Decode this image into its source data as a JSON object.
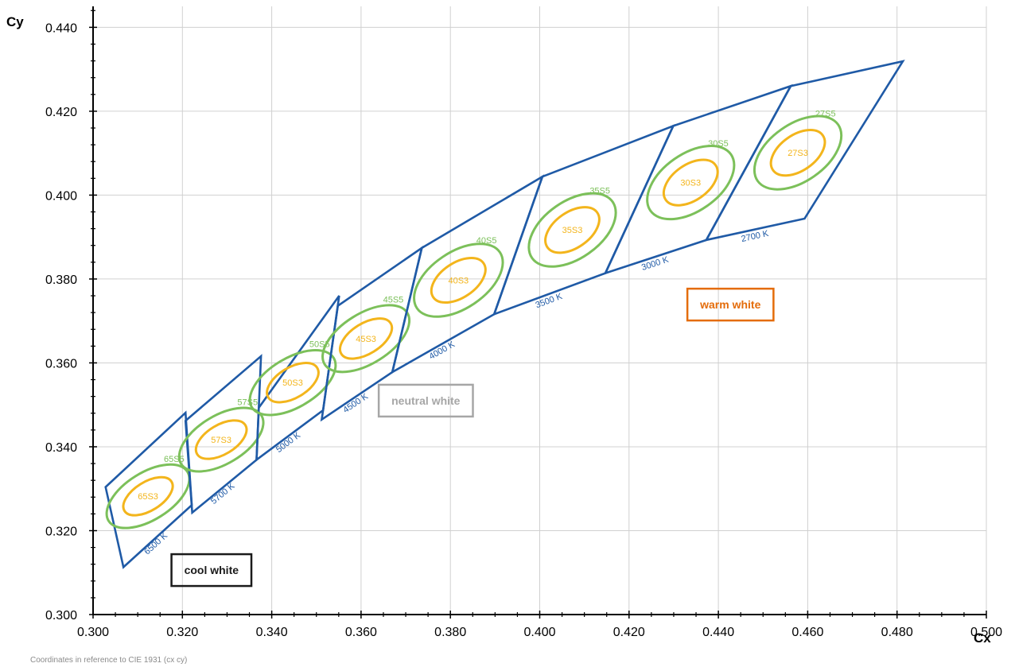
{
  "chart_data": {
    "type": "scatter",
    "xlabel": "Cx",
    "ylabel": "Cy",
    "xlim": [
      0.3,
      0.5
    ],
    "ylim": [
      0.3,
      0.445
    ],
    "x_ticks": [
      "0.300",
      "0.320",
      "0.340",
      "0.360",
      "0.380",
      "0.400",
      "0.420",
      "0.440",
      "0.460",
      "0.480",
      "0.500"
    ],
    "y_ticks": [
      "0.300",
      "0.320",
      "0.340",
      "0.360",
      "0.380",
      "0.400",
      "0.420",
      "0.440"
    ],
    "grid": true,
    "footnote": "Coordinates in reference to CIE 1931 (cx cy)",
    "colors": {
      "quad": "#1f5aa6",
      "ellipse_s5": "#7cc05a",
      "ellipse_s3": "#f3b51c",
      "grid": "#d0d0d0"
    },
    "bins": [
      {
        "cct": "6500 K",
        "s5": "65S5",
        "s3": "65S3",
        "center": [
          0.3123,
          0.3282
        ],
        "quad": [
          [
            0.3028,
            0.3304
          ],
          [
            0.3207,
            0.3481
          ],
          [
            0.3221,
            0.3261
          ],
          [
            0.3068,
            0.3113
          ]
        ],
        "ellipse_s5": {
          "a": 0.0053,
          "b": 0.0104,
          "angle": 58
        },
        "ellipse_s3": {
          "a": 0.0032,
          "b": 0.0062,
          "angle": 58
        }
      },
      {
        "cct": "5700 K",
        "s5": "57S5",
        "s3": "57S3",
        "center": [
          0.3287,
          0.3417
        ],
        "quad": [
          [
            0.3207,
            0.3462
          ],
          [
            0.3376,
            0.3616
          ],
          [
            0.3366,
            0.3369
          ],
          [
            0.3222,
            0.3243
          ]
        ],
        "ellipse_s5": {
          "a": 0.0054,
          "b": 0.0105,
          "angle": 59
        },
        "ellipse_s3": {
          "a": 0.0033,
          "b": 0.0063,
          "angle": 59
        }
      },
      {
        "cct": "5000 K",
        "s5": "50S5",
        "s3": "50S3",
        "center": [
          0.3447,
          0.3553
        ],
        "quad": [
          [
            0.3371,
            0.3493
          ],
          [
            0.3551,
            0.376
          ],
          [
            0.3515,
            0.3487
          ],
          [
            0.3366,
            0.3369
          ]
        ],
        "ellipse_s5": {
          "a": 0.0055,
          "b": 0.0107,
          "angle": 59
        },
        "ellipse_s3": {
          "a": 0.0034,
          "b": 0.0064,
          "angle": 59
        }
      },
      {
        "cct": "4500 K",
        "s5": "45S5",
        "s3": "45S3",
        "center": [
          0.3611,
          0.3658
        ],
        "quad": [
          [
            0.3548,
            0.3736
          ],
          [
            0.3736,
            0.3874
          ],
          [
            0.367,
            0.3578
          ],
          [
            0.3512,
            0.3465
          ]
        ],
        "ellipse_s5": {
          "a": 0.0056,
          "b": 0.0109,
          "angle": 58
        },
        "ellipse_s3": {
          "a": 0.0034,
          "b": 0.0065,
          "angle": 58
        }
      },
      {
        "cct": "4000 K",
        "s5": "40S5",
        "s3": "40S3",
        "center": [
          0.3818,
          0.3797
        ],
        "quad": [
          [
            0.3736,
            0.3874
          ],
          [
            0.4006,
            0.4044
          ],
          [
            0.3898,
            0.3716
          ],
          [
            0.367,
            0.3578
          ]
        ],
        "ellipse_s5": {
          "a": 0.0063,
          "b": 0.0112,
          "angle": 56
        },
        "ellipse_s3": {
          "a": 0.0039,
          "b": 0.0068,
          "angle": 56
        }
      },
      {
        "cct": "3500 K",
        "s5": "35S5",
        "s3": "35S3",
        "center": [
          0.4073,
          0.3917
        ],
        "quad": [
          [
            0.4006,
            0.4044
          ],
          [
            0.4299,
            0.4165
          ],
          [
            0.4147,
            0.3814
          ],
          [
            0.3898,
            0.3716
          ]
        ],
        "ellipse_s5": {
          "a": 0.0064,
          "b": 0.011,
          "angle": 55
        },
        "ellipse_s3": {
          "a": 0.004,
          "b": 0.0068,
          "angle": 55
        }
      },
      {
        "cct": "3000 K",
        "s5": "30S5",
        "s3": "30S3",
        "center": [
          0.4338,
          0.403
        ],
        "quad": [
          [
            0.4299,
            0.4165
          ],
          [
            0.4562,
            0.426
          ],
          [
            0.4373,
            0.3893
          ],
          [
            0.4147,
            0.3814
          ]
        ],
        "ellipse_s5": {
          "a": 0.0064,
          "b": 0.011,
          "angle": 55
        },
        "ellipse_s3": {
          "a": 0.004,
          "b": 0.0068,
          "angle": 55
        }
      },
      {
        "cct": "2700 K",
        "s5": "27S5",
        "s3": "27S3",
        "center": [
          0.4578,
          0.4101
        ],
        "quad": [
          [
            0.4562,
            0.426
          ],
          [
            0.4813,
            0.4319
          ],
          [
            0.4593,
            0.3944
          ],
          [
            0.4373,
            0.3893
          ]
        ],
        "ellipse_s5": {
          "a": 0.0064,
          "b": 0.011,
          "angle": 55
        },
        "ellipse_s3": {
          "a": 0.004,
          "b": 0.0068,
          "angle": 55
        }
      }
    ],
    "region_labels": [
      {
        "text": "cool white",
        "x": 0.3265,
        "y": 0.3106,
        "color": "#1a1a1a"
      },
      {
        "text": "neutral white",
        "x": 0.3745,
        "y": 0.351,
        "color": "#a6a6a6"
      },
      {
        "text": "warm white",
        "x": 0.4427,
        "y": 0.3739,
        "color": "#e46c0a"
      }
    ]
  }
}
